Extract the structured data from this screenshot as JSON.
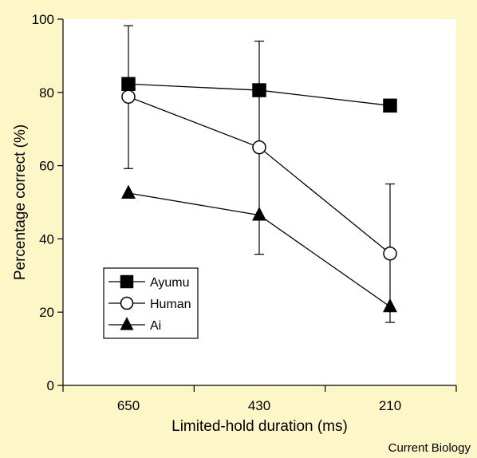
{
  "page": {
    "background_color": "#fdf7c8",
    "plot_background_color": "#ffffff",
    "credit": "Current Biology"
  },
  "chart_data": {
    "type": "line",
    "xlabel": "Limited-hold duration (ms)",
    "ylabel": "Percentage correct (%)",
    "categories": [
      "650",
      "430",
      "210"
    ],
    "ylim": [
      0,
      100
    ],
    "yticks": [
      "0",
      "20",
      "40",
      "60",
      "80",
      "100"
    ],
    "legend_position": "bottom-left",
    "series": [
      {
        "name": "Ayumu",
        "marker": "square",
        "marker_fill": "#000000",
        "values": [
          82.3,
          80.6,
          76.4
        ],
        "error_low": [
          null,
          null,
          null
        ],
        "error_high": [
          98.2,
          null,
          null
        ]
      },
      {
        "name": "Human",
        "marker": "circle",
        "marker_fill": "#ffffff",
        "values": [
          78.8,
          65.0,
          36.0
        ],
        "error_low": [
          59.2,
          35.8,
          17.2
        ],
        "error_high": [
          null,
          94.0,
          55.0
        ]
      },
      {
        "name": "Ai",
        "marker": "triangle",
        "marker_fill": "#000000",
        "values": [
          52.5,
          46.5,
          21.5
        ],
        "error_low": [
          null,
          null,
          null
        ],
        "error_high": [
          null,
          null,
          null
        ]
      }
    ]
  }
}
